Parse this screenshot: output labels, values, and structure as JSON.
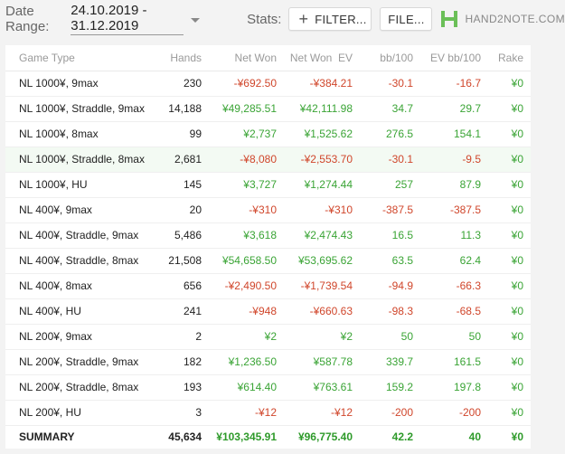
{
  "toolbar": {
    "date_range_label": "Date Range:",
    "date_range_value": "24.10.2019 - 31.12.2019",
    "stats_label": "Stats:",
    "filter_label": "FILTER...",
    "file_label": "FILE...",
    "logo_text": "HAND2NOTE.COM"
  },
  "colors": {
    "positive": "#3aa435",
    "negative": "#d0462b",
    "logo": "#6bbf58"
  },
  "table": {
    "headers": [
      "Game Type",
      "Hands",
      "Net Won",
      "Net Won  EV",
      "bb/100",
      "EV bb/100",
      "Rake"
    ],
    "rows": [
      {
        "game": "NL 1000¥, 9max",
        "hands": "230",
        "net": "-¥692.50",
        "ev": "-¥384.21",
        "bb": "-30.1",
        "evbb": "-16.7",
        "rake": "¥0"
      },
      {
        "game": "NL 1000¥, Straddle, 9max",
        "hands": "14,188",
        "net": "¥49,285.51",
        "ev": "¥42,111.98",
        "bb": "34.7",
        "evbb": "29.7",
        "rake": "¥0"
      },
      {
        "game": "NL 1000¥, 8max",
        "hands": "99",
        "net": "¥2,737",
        "ev": "¥1,525.62",
        "bb": "276.5",
        "evbb": "154.1",
        "rake": "¥0"
      },
      {
        "game": "NL 1000¥, Straddle, 8max",
        "hands": "2,681",
        "net": "-¥8,080",
        "ev": "-¥2,553.70",
        "bb": "-30.1",
        "evbb": "-9.5",
        "rake": "¥0"
      },
      {
        "game": "NL 1000¥, HU",
        "hands": "145",
        "net": "¥3,727",
        "ev": "¥1,274.44",
        "bb": "257",
        "evbb": "87.9",
        "rake": "¥0"
      },
      {
        "game": "NL 400¥, 9max",
        "hands": "20",
        "net": "-¥310",
        "ev": "-¥310",
        "bb": "-387.5",
        "evbb": "-387.5",
        "rake": "¥0"
      },
      {
        "game": "NL 400¥, Straddle, 9max",
        "hands": "5,486",
        "net": "¥3,618",
        "ev": "¥2,474.43",
        "bb": "16.5",
        "evbb": "11.3",
        "rake": "¥0"
      },
      {
        "game": "NL 400¥, Straddle, 8max",
        "hands": "21,508",
        "net": "¥54,658.50",
        "ev": "¥53,695.62",
        "bb": "63.5",
        "evbb": "62.4",
        "rake": "¥0"
      },
      {
        "game": "NL 400¥, 8max",
        "hands": "656",
        "net": "-¥2,490.50",
        "ev": "-¥1,739.54",
        "bb": "-94.9",
        "evbb": "-66.3",
        "rake": "¥0"
      },
      {
        "game": "NL 400¥, HU",
        "hands": "241",
        "net": "-¥948",
        "ev": "-¥660.63",
        "bb": "-98.3",
        "evbb": "-68.5",
        "rake": "¥0"
      },
      {
        "game": "NL 200¥, 9max",
        "hands": "2",
        "net": "¥2",
        "ev": "¥2",
        "bb": "50",
        "evbb": "50",
        "rake": "¥0"
      },
      {
        "game": "NL 200¥, Straddle, 9max",
        "hands": "182",
        "net": "¥1,236.50",
        "ev": "¥587.78",
        "bb": "339.7",
        "evbb": "161.5",
        "rake": "¥0"
      },
      {
        "game": "NL 200¥, Straddle, 8max",
        "hands": "193",
        "net": "¥614.40",
        "ev": "¥763.61",
        "bb": "159.2",
        "evbb": "197.8",
        "rake": "¥0"
      },
      {
        "game": "NL 200¥, HU",
        "hands": "3",
        "net": "-¥12",
        "ev": "-¥12",
        "bb": "-200",
        "evbb": "-200",
        "rake": "¥0"
      }
    ],
    "highlighted_row": 3,
    "summary": {
      "game": "SUMMARY",
      "hands": "45,634",
      "net": "¥103,345.91",
      "ev": "¥96,775.40",
      "bb": "42.2",
      "evbb": "40",
      "rake": "¥0"
    }
  }
}
